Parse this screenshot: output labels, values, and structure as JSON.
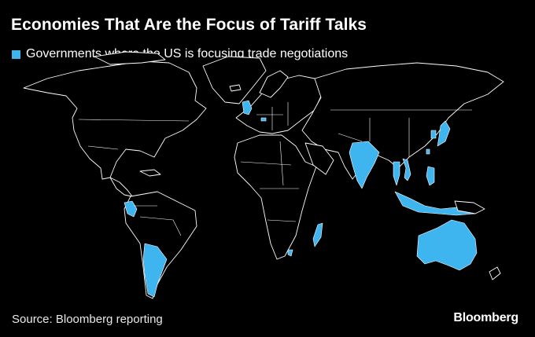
{
  "title": "Economies That Are the Focus of Tariff Talks",
  "legend": {
    "label": "Governments where the US is focusing trade negotiations",
    "color": "#3fb5f0"
  },
  "source": "Source: Bloomberg reporting",
  "logo": "Bloomberg",
  "colors": {
    "background": "#000000",
    "highlight": "#3fb5f0",
    "outline": "#ffffff"
  }
}
